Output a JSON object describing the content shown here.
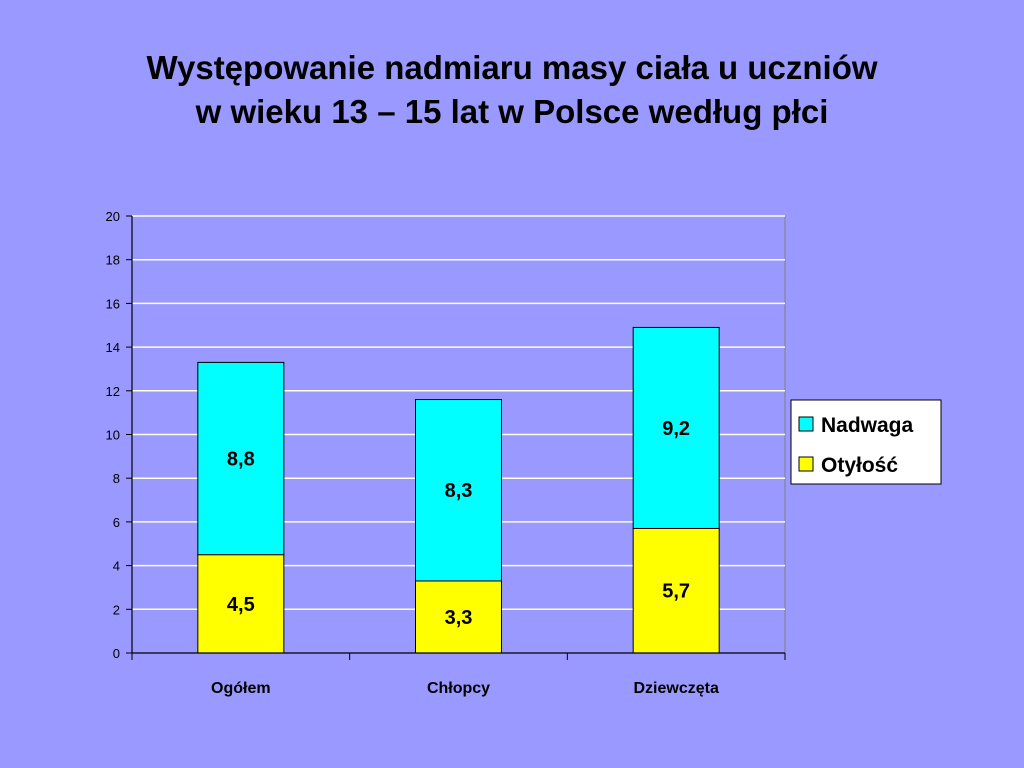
{
  "slide": {
    "title_line1": "Występowanie nadmiaru masy ciała u uczniów",
    "title_line2": "w wieku 13 – 15 lat w Polsce według płci",
    "background_color": "#9999ff"
  },
  "chart_data": {
    "type": "bar",
    "stacked": true,
    "categories": [
      "Ogółem",
      "Chłopcy",
      "Dziewczęta"
    ],
    "series": [
      {
        "name": "Otyłość",
        "values": [
          4.5,
          3.3,
          5.7
        ],
        "labels": [
          "4,5",
          "3,3",
          "5,7"
        ],
        "color": "#ffff00"
      },
      {
        "name": "Nadwaga",
        "values": [
          8.8,
          8.3,
          9.2
        ],
        "labels": [
          "8,8",
          "8,3",
          "9,2"
        ],
        "color": "#00ffff"
      }
    ],
    "legend_order": [
      "Nadwaga",
      "Otyłość"
    ],
    "ylim": [
      0,
      20
    ],
    "yticks": [
      0,
      2,
      4,
      6,
      8,
      10,
      12,
      14,
      16,
      18,
      20
    ],
    "grid": true,
    "grid_color": "#ffffe0",
    "legend_position": "right",
    "xlabel": "",
    "ylabel": ""
  }
}
